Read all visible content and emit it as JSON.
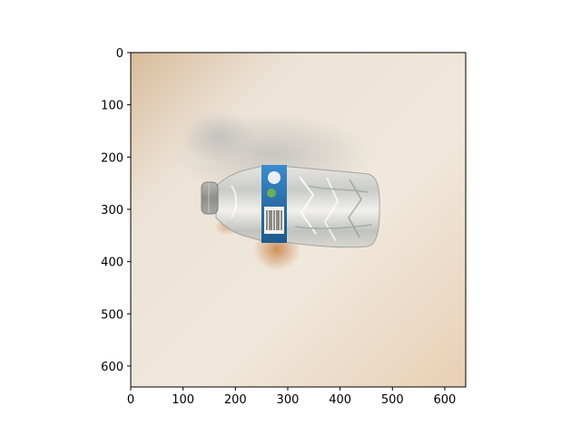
{
  "chart_data": {
    "type": "image",
    "title": "",
    "xlabel": "",
    "ylabel": "",
    "xlim": [
      0,
      640
    ],
    "ylim": [
      640,
      0
    ],
    "x_ticks": [
      0,
      100,
      200,
      300,
      400,
      500,
      600
    ],
    "y_ticks": [
      0,
      100,
      200,
      300,
      400,
      500,
      600
    ],
    "image_content": {
      "subject": "crumpled plastic water bottle with grey cap and blue label lying on a beige surface",
      "colors": {
        "background": "#efe6d8",
        "surface_warm": "#e8cfb4",
        "label_blue": "#2f78b8",
        "cap_grey": "#9a9a96"
      }
    }
  }
}
